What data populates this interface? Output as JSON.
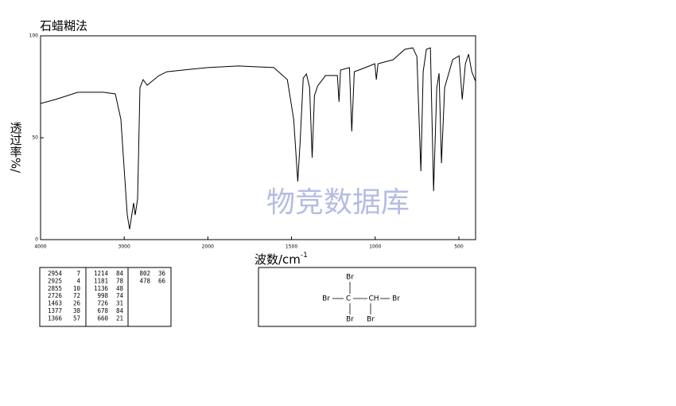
{
  "chart_data": {
    "type": "line",
    "title": "石蜡糊法",
    "x_label": "波数/cm",
    "x_label_sup": "-1",
    "y_label": "透过率%/",
    "watermark": "物竞数据库",
    "color": "#000000",
    "xscale": "tick-spaced",
    "xlim": [
      4000,
      400
    ],
    "xticks": [
      4000,
      3000,
      2000,
      1500,
      1000,
      500
    ],
    "ylim": [
      0,
      100
    ],
    "yticks": [
      0,
      50,
      100
    ],
    "x": [
      4000,
      3819,
      3553,
      3249,
      3106,
      3040,
      3002,
      2964,
      2935,
      2907,
      2888,
      2869,
      2840,
      2812,
      2774,
      2726,
      2584,
      2489,
      2205,
      2000,
      1819,
      1606,
      1525,
      1487,
      1463,
      1449,
      1430,
      1411,
      1392,
      1377,
      1363,
      1344,
      1297,
      1226,
      1216,
      1207,
      1154,
      1140,
      1125,
      1059,
      1002,
      993,
      983,
      893,
      822,
      775,
      751,
      727,
      713,
      694,
      670,
      651,
      632,
      618,
      604,
      585,
      537,
      499,
      480,
      461,
      442,
      423,
      400
    ],
    "values": [
      66.8,
      68.8,
      72.3,
      72.3,
      71.5,
      59,
      35.5,
      12.1,
      5.1,
      12.9,
      18,
      12.1,
      19.9,
      74.6,
      78.5,
      75.8,
      80.5,
      82.4,
      83.6,
      84.4,
      85.2,
      84.4,
      78.5,
      59,
      28.5,
      47.3,
      79.3,
      81.3,
      74.6,
      40.2,
      70.7,
      75.4,
      80.5,
      80.5,
      67.6,
      83.2,
      84.4,
      53.1,
      82.4,
      84.4,
      86.3,
      78.5,
      86.3,
      88.3,
      93.4,
      94.1,
      89.8,
      33.6,
      82.4,
      93.4,
      94.1,
      23.8,
      74.6,
      81.6,
      37.5,
      74.6,
      88.3,
      90.2,
      68.8,
      86.3,
      91,
      82.4,
      77.7
    ]
  },
  "peak_table": [
    [
      [
        2954,
        7
      ],
      [
        2925,
        4
      ],
      [
        2855,
        10
      ],
      [
        2726,
        72
      ],
      [
        1463,
        26
      ],
      [
        1377,
        38
      ],
      [
        1366,
        57
      ]
    ],
    [
      [
        1214,
        84
      ],
      [
        1181,
        78
      ],
      [
        1136,
        48
      ],
      [
        998,
        74
      ],
      [
        726,
        31
      ],
      [
        678,
        84
      ],
      [
        660,
        21
      ]
    ],
    [
      [
        802,
        36
      ],
      [
        478,
        66
      ]
    ]
  ],
  "molecule": {
    "atoms": [
      "Br",
      "Br",
      "C",
      "CH",
      "Br",
      "Br",
      "Br"
    ]
  }
}
